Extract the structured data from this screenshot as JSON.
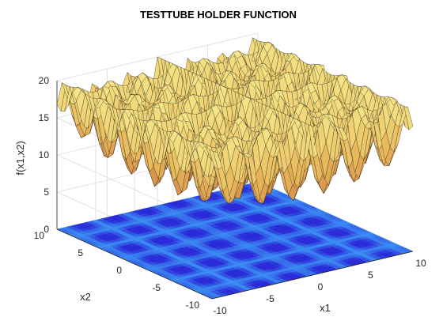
{
  "chart_data": {
    "type": "surface",
    "title": "TESTTUBE HOLDER FUNCTION",
    "xlabel": "x1",
    "ylabel": "x2",
    "zlabel": "f(x1,x2)",
    "xlim": [
      -10,
      10
    ],
    "ylim": [
      -10,
      10
    ],
    "zlim": [
      0,
      20
    ],
    "x_ticks": [
      "-10",
      "-5",
      "0",
      "5",
      "10"
    ],
    "y_ticks": [
      "-10",
      "-5",
      "0",
      "5",
      "10"
    ],
    "z_ticks": [
      "0",
      "5",
      "10",
      "15",
      "20"
    ],
    "grid": true,
    "surface_colormap": [
      "#c86b3d",
      "#e8b85a",
      "#f6e98a"
    ],
    "contour_colormap": [
      "#2a2ad8",
      "#3a8cf4"
    ],
    "surface_grid": {
      "x_min": -10,
      "x_max": 10,
      "y_min": -10,
      "y_max": 10,
      "n": 41,
      "function": "testtube holder (negated, shifted): 20 - 4*|sin(x1)*cos(x2)*exp(|cos((x1^2+x2^2)/200)|)|"
    }
  }
}
